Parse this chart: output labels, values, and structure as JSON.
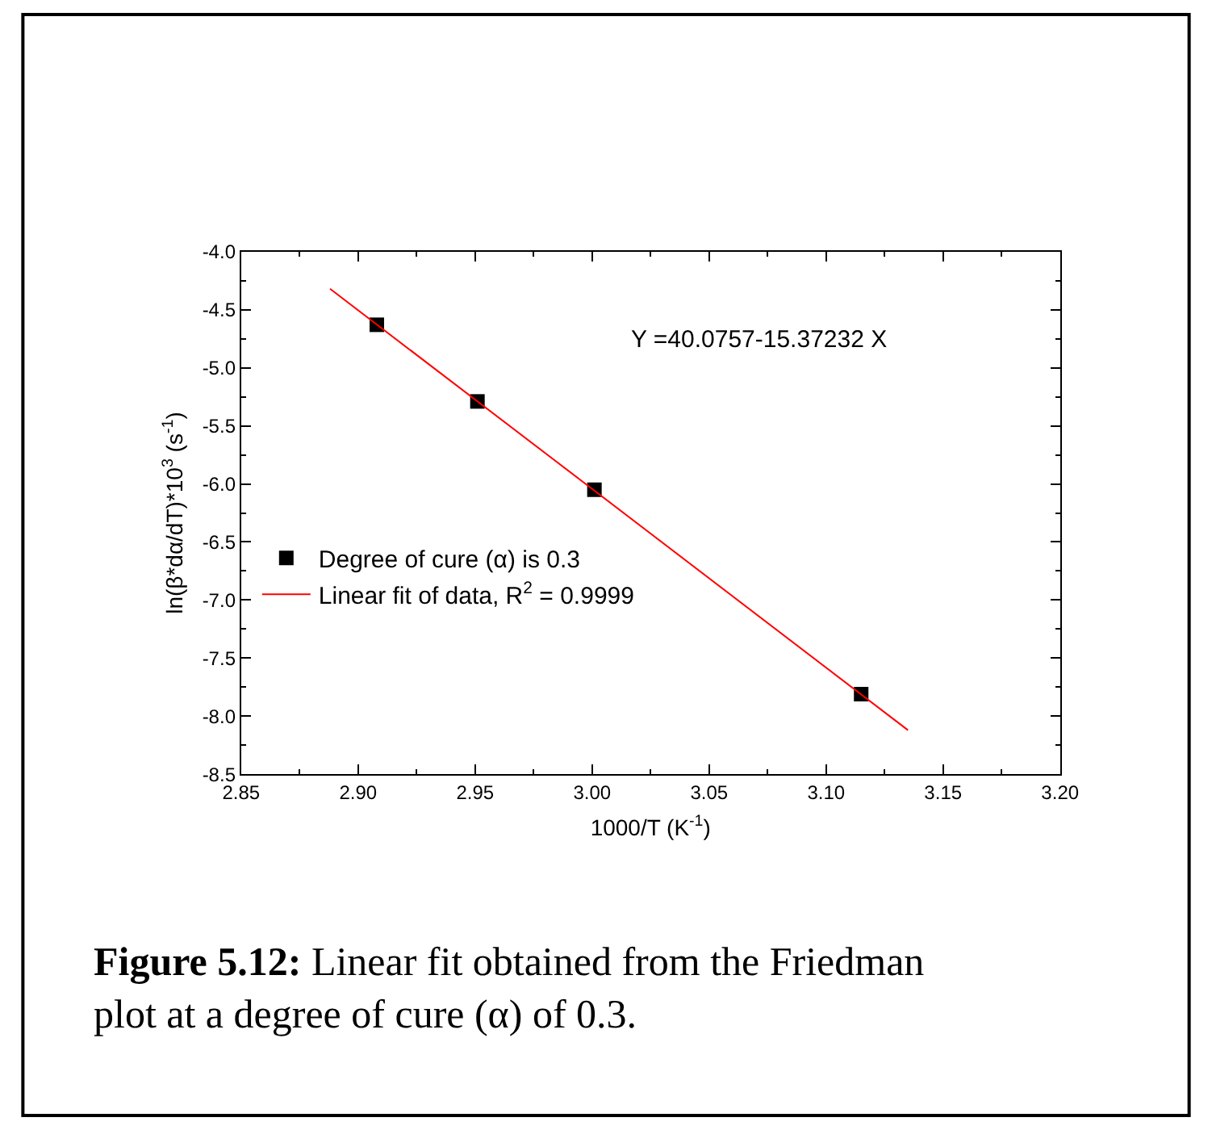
{
  "chart_data": {
    "type": "scatter",
    "xlabel": "1000/T (K$^{-1}$)",
    "ylabel": "ln(β*dα/dT)*10$^{3}$ (s$^{-1}$)",
    "series": [
      {
        "name": "Degree of cure (α) is 0.3",
        "color": "#000000",
        "marker": "square",
        "x": [
          2.908,
          2.951,
          3.001,
          3.115
        ],
        "values": [
          -4.63,
          -5.29,
          -6.05,
          -7.81
        ]
      },
      {
        "name": "Linear fit of data, R$^{2}$ = 0.9999",
        "type": "line",
        "color": "#ff0000",
        "marker": "none",
        "line_style": "solid",
        "x": [
          2.888,
          3.135
        ],
        "values": [
          -4.32,
          -8.12
        ]
      }
    ],
    "xlim": [
      2.85,
      3.2
    ],
    "xticks": [
      {
        "value": 2.85,
        "label": "2.85"
      },
      {
        "value": 2.9,
        "label": "2.90"
      },
      {
        "value": 2.95,
        "label": "2.95"
      },
      {
        "value": 3.0,
        "label": "3.00"
      },
      {
        "value": 3.05,
        "label": "3.05"
      },
      {
        "value": 3.1,
        "label": "3.10"
      },
      {
        "value": 3.15,
        "label": "3.15"
      },
      {
        "value": 3.2,
        "label": "3.20"
      }
    ],
    "ylim": [
      -8.5,
      -4.0
    ],
    "yticks": [
      {
        "value": -8.5,
        "label": "-8.5"
      },
      {
        "value": -8.0,
        "label": "-8.0"
      },
      {
        "value": -7.5,
        "label": "-7.5"
      },
      {
        "value": -7.0,
        "label": "-7.0"
      },
      {
        "value": -6.5,
        "label": "-6.5"
      },
      {
        "value": -6.0,
        "label": "-6.0"
      },
      {
        "value": -5.5,
        "label": "-5.5"
      },
      {
        "value": -5.0,
        "label": "-5.0"
      },
      {
        "value": -4.5,
        "label": "-4.5"
      },
      {
        "value": -4.0,
        "label": "-4.0"
      }
    ],
    "annotations": [
      "Y =40.0757-15.37232 X",
      "Figure 5.12:",
      "Linear fit obtained from the Friedman plot at a degree of cure (α) of 0.3."
    ],
    "legend": "left"
  }
}
